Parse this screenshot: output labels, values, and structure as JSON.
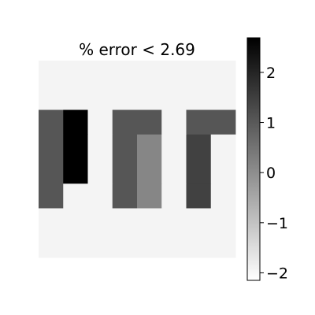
{
  "chart_data": {
    "type": "heatmap",
    "title": "% error < 2.69",
    "colormap": "greys",
    "vmin": -2.15,
    "vmax": 2.69,
    "rows": 8,
    "cols": 8,
    "values": [
      [
        -1.95,
        -1.95,
        -1.95,
        -1.95,
        -1.95,
        -1.95,
        -1.95,
        -1.95
      ],
      [
        -1.95,
        -1.95,
        -1.95,
        -1.95,
        -1.95,
        -1.95,
        -1.95,
        -1.95
      ],
      [
        1.05,
        2.69,
        -1.95,
        1.05,
        1.05,
        -1.95,
        1.05,
        1.05
      ],
      [
        1.05,
        2.69,
        -1.95,
        1.05,
        0.15,
        -1.95,
        1.45,
        -1.95
      ],
      [
        1.05,
        2.69,
        -1.95,
        1.05,
        0.15,
        -1.95,
        1.45,
        -1.95
      ],
      [
        1.05,
        -1.95,
        -1.95,
        1.05,
        0.15,
        -1.95,
        1.45,
        -1.95
      ],
      [
        -1.95,
        -1.95,
        -1.95,
        -1.95,
        -1.95,
        -1.95,
        -1.95,
        -1.95
      ],
      [
        -1.95,
        -1.95,
        -1.95,
        -1.95,
        -1.95,
        -1.95,
        -1.95,
        -1.95
      ]
    ],
    "colorbar": {
      "ticks": [
        2,
        1,
        0,
        -1,
        -2
      ],
      "tick_labels": [
        "2",
        "1",
        "0",
        "−1",
        "−2"
      ]
    }
  }
}
